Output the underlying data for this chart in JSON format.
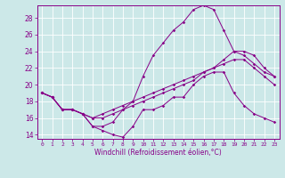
{
  "title": "",
  "xlabel": "Windchill (Refroidissement éolien,°C)",
  "ylabel": "",
  "background_color": "#cce8e8",
  "line_color": "#880088",
  "grid_color": "#aacccc",
  "xlim": [
    -0.5,
    23.5
  ],
  "ylim": [
    13.5,
    29.5
  ],
  "yticks": [
    14,
    16,
    18,
    20,
    22,
    24,
    26,
    28
  ],
  "xticks": [
    0,
    1,
    2,
    3,
    4,
    5,
    6,
    7,
    8,
    9,
    10,
    11,
    12,
    13,
    14,
    15,
    16,
    17,
    18,
    19,
    20,
    21,
    22,
    23
  ],
  "xtick_labels": [
    "0",
    "1",
    "2",
    "3",
    "4",
    "5",
    "6",
    "7",
    "8",
    "9",
    "10",
    "11",
    "12",
    "13",
    "14",
    "15",
    "16",
    "17",
    "18",
    "19",
    "20",
    "21",
    "22",
    "23"
  ],
  "series": [
    [
      19.0,
      18.5,
      17.0,
      17.0,
      16.5,
      15.0,
      14.5,
      14.0,
      13.7,
      15.0,
      17.0,
      17.0,
      17.5,
      18.5,
      18.5,
      20.0,
      21.0,
      21.5,
      21.5,
      19.0,
      17.5,
      16.5,
      16.0,
      15.5
    ],
    [
      19.0,
      18.5,
      17.0,
      17.0,
      16.5,
      15.0,
      15.0,
      15.5,
      17.0,
      18.0,
      21.0,
      23.5,
      25.0,
      26.5,
      27.5,
      29.0,
      29.5,
      29.0,
      26.5,
      24.0,
      23.5,
      22.5,
      21.5,
      21.0
    ],
    [
      19.0,
      18.5,
      17.0,
      17.0,
      16.5,
      16.0,
      16.0,
      16.5,
      17.0,
      17.5,
      18.0,
      18.5,
      19.0,
      19.5,
      20.0,
      20.5,
      21.5,
      22.0,
      23.0,
      24.0,
      24.0,
      23.5,
      22.0,
      21.0
    ],
    [
      19.0,
      18.5,
      17.0,
      17.0,
      16.5,
      16.0,
      16.5,
      17.0,
      17.5,
      18.0,
      18.5,
      19.0,
      19.5,
      20.0,
      20.5,
      21.0,
      21.5,
      22.0,
      22.5,
      23.0,
      23.0,
      22.0,
      21.0,
      20.0
    ]
  ]
}
